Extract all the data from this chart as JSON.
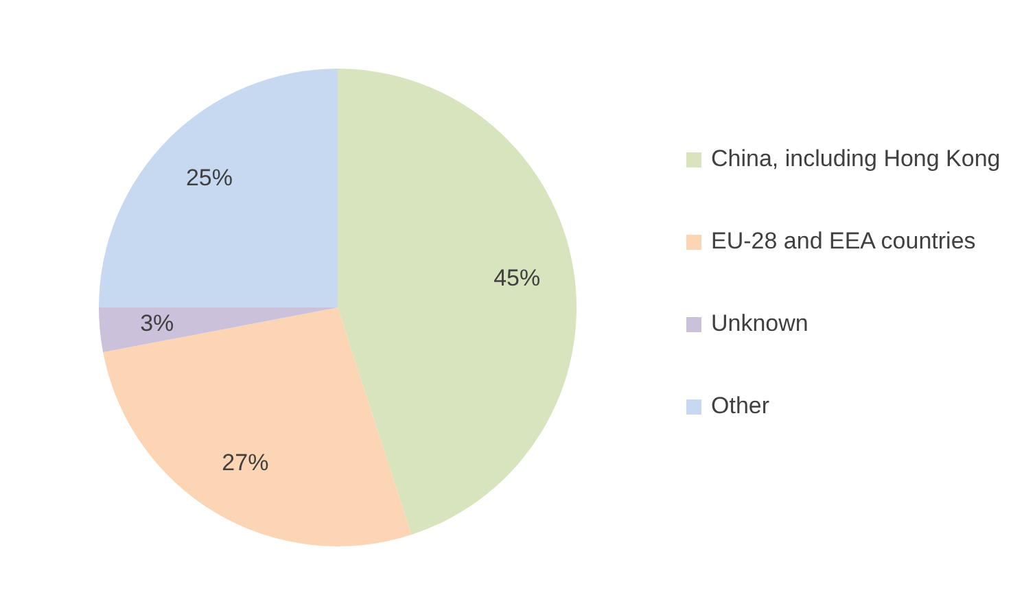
{
  "chart_data": {
    "type": "pie",
    "categories": [
      "China, including Hong Kong",
      "EU-28 and EEA countries",
      "Unknown",
      "Other"
    ],
    "values": [
      45,
      27,
      3,
      25
    ],
    "colors": [
      "#d7e4bd",
      "#fcd5b5",
      "#ccc1da",
      "#c6d9f1"
    ],
    "value_labels": [
      "45%",
      "27%",
      "3%",
      "25%"
    ],
    "legend": "right"
  }
}
